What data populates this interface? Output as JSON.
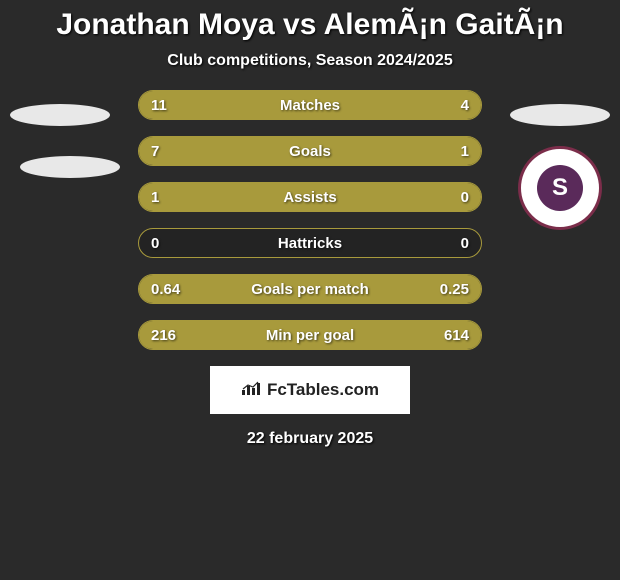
{
  "title": "Jonathan Moya vs AlemÃ¡n GaitÃ¡n",
  "subtitle": "Club competitions, Season 2024/2025",
  "colors": {
    "background": "#2a2a2a",
    "bar_fill": "#a89a3c",
    "bar_border": "#a89a3c",
    "text": "#ffffff",
    "ellipse": "#e8e8e8",
    "badge_ring": "#7b2d4a",
    "badge_inner": "#5a2a5a",
    "logo_bg": "#ffffff",
    "logo_text": "#222222"
  },
  "bars": [
    {
      "label": "Matches",
      "left_val": "11",
      "right_val": "4",
      "left_pct": 73,
      "right_pct": 27
    },
    {
      "label": "Goals",
      "left_val": "7",
      "right_val": "1",
      "left_pct": 88,
      "right_pct": 12
    },
    {
      "label": "Assists",
      "left_val": "1",
      "right_val": "0",
      "left_pct": 100,
      "right_pct": 0
    },
    {
      "label": "Hattricks",
      "left_val": "0",
      "right_val": "0",
      "left_pct": 0,
      "right_pct": 0
    },
    {
      "label": "Goals per match",
      "left_val": "0.64",
      "right_val": "0.25",
      "left_pct": 72,
      "right_pct": 28
    },
    {
      "label": "Min per goal",
      "left_val": "216",
      "right_val": "614",
      "left_pct": 26,
      "right_pct": 74
    }
  ],
  "badge_letter": "S",
  "logo_text": "FcTables.com",
  "date": "22 february 2025"
}
